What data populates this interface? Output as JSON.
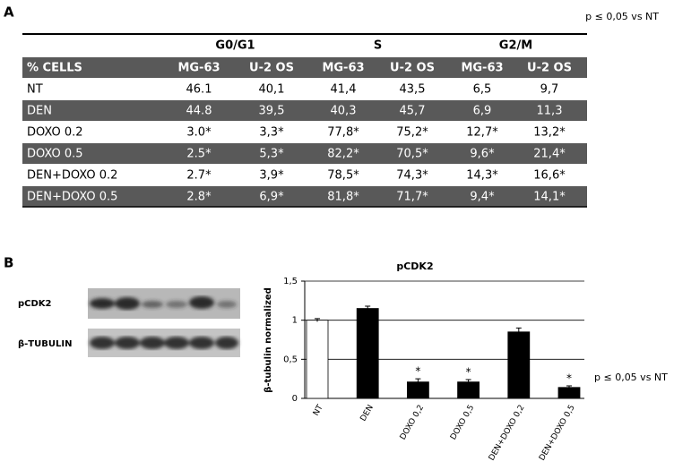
{
  "panel_a": {
    "label": "A",
    "note": "p ≤ 0,05 vs NT",
    "table": {
      "groups": [
        "G0/G1",
        "S",
        "G2/M"
      ],
      "header": [
        "% CELLS",
        "MG-63",
        "U-2 OS",
        "MG-63",
        "U-2 OS",
        "MG-63",
        "U-2 OS"
      ],
      "rows": [
        [
          "NT",
          "46.1",
          "40,1",
          "41,4",
          "43,5",
          "6,5",
          "9,7"
        ],
        [
          "DEN",
          "44.8",
          "39,5",
          "40,3",
          "45,7",
          "6,9",
          "11,3"
        ],
        [
          "DOXO 0.2",
          "3.0*",
          "3,3*",
          "77,8*",
          "75,2*",
          "12,7*",
          "13,2*"
        ],
        [
          "DOXO 0.5",
          "2.5*",
          "5,3*",
          "82,2*",
          "70,5*",
          "9,6*",
          "21,4*"
        ],
        [
          "DEN+DOXO 0.2",
          "2.7*",
          "3,9*",
          "78,5*",
          "74,3*",
          "14,3*",
          "16,6*"
        ],
        [
          "DEN+DOXO 0.5",
          "2.8*",
          "6,9*",
          "81,8*",
          "71,7*",
          "9,4*",
          "14,1*"
        ]
      ]
    }
  },
  "panel_b": {
    "label": "B",
    "blot_labels": [
      "pCDK2",
      "β-TUBULIN"
    ],
    "note": "p ≤ 0,05 vs NT"
  },
  "chart_data": {
    "type": "bar",
    "title": "pCDK2",
    "y_label": "β-tubulin normalized",
    "categories": [
      "NT",
      "DEN",
      "DOXO 0,2",
      "DOXO 0,5",
      "DEN+DOXO 0,2",
      "DEN+DOXO 0,5"
    ],
    "values": [
      1.0,
      1.15,
      0.21,
      0.21,
      0.85,
      0.14
    ],
    "errors": [
      0.02,
      0.03,
      0.04,
      0.03,
      0.05,
      0.02
    ],
    "colors": [
      "#ffffff",
      "#000000",
      "#000000",
      "#000000",
      "#000000",
      "#000000"
    ],
    "significant": [
      false,
      false,
      true,
      true,
      false,
      true
    ],
    "significance_label": "*",
    "ylim": [
      0,
      1.5
    ],
    "yticks": [
      0,
      {
        "value": 0.5,
        "label": "0,5"
      },
      1,
      {
        "value": 1.5,
        "label": "1,5"
      }
    ],
    "grid": true
  }
}
